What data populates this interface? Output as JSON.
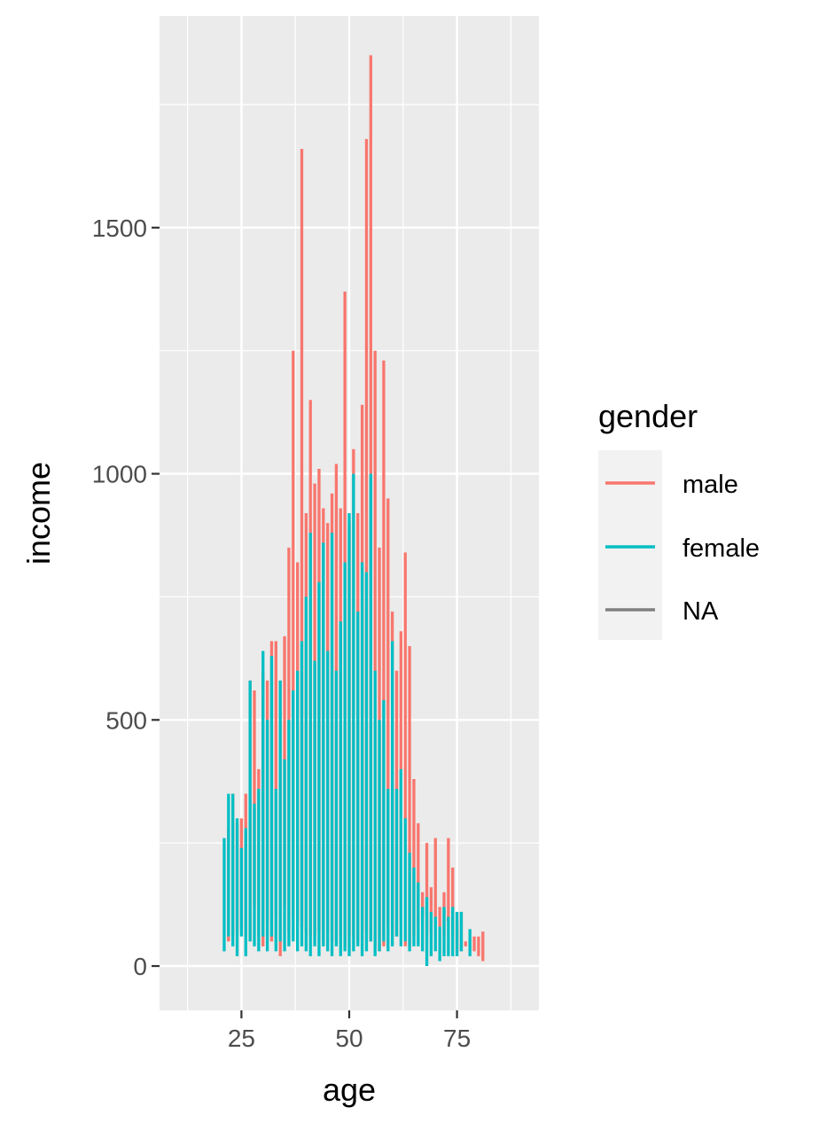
{
  "chart_data": {
    "type": "line",
    "title": "",
    "xlabel": "age",
    "ylabel": "income",
    "xlim": [
      6,
      94
    ],
    "ylim": [
      -90,
      1930
    ],
    "x_ticks": [
      25,
      50,
      75
    ],
    "x_tick_labels": [
      "25",
      "50",
      "75"
    ],
    "x_minor_ticks": [
      12.5,
      37.5,
      62.5,
      87.5
    ],
    "y_ticks": [
      0,
      500,
      1000,
      1500
    ],
    "y_tick_labels": [
      "0",
      "500",
      "1000",
      "1500"
    ],
    "y_minor_ticks": [
      250,
      750,
      1250,
      1750
    ],
    "grid": true,
    "legend": {
      "title": "gender",
      "placement": "right"
    },
    "series": [
      {
        "name": "male",
        "color": "#F8766D",
        "segments": [
          [
            22,
            50,
            280
          ],
          [
            23,
            60,
            350
          ],
          [
            24,
            70,
            290
          ],
          [
            25,
            80,
            300
          ],
          [
            26,
            60,
            350
          ],
          [
            27,
            50,
            580
          ],
          [
            28,
            120,
            560
          ],
          [
            29,
            60,
            400
          ],
          [
            30,
            40,
            600
          ],
          [
            31,
            90,
            580
          ],
          [
            32,
            50,
            660
          ],
          [
            33,
            100,
            660
          ],
          [
            34,
            20,
            580
          ],
          [
            35,
            120,
            670
          ],
          [
            36,
            70,
            850
          ],
          [
            37,
            100,
            1250
          ],
          [
            38,
            90,
            820
          ],
          [
            39,
            80,
            1660
          ],
          [
            40,
            70,
            920
          ],
          [
            41,
            60,
            1150
          ],
          [
            42,
            60,
            980
          ],
          [
            43,
            70,
            1010
          ],
          [
            44,
            50,
            930
          ],
          [
            45,
            70,
            900
          ],
          [
            46,
            50,
            960
          ],
          [
            47,
            50,
            1020
          ],
          [
            48,
            60,
            930
          ],
          [
            49,
            40,
            1370
          ],
          [
            50,
            60,
            900
          ],
          [
            51,
            60,
            1050
          ],
          [
            52,
            50,
            920
          ],
          [
            53,
            50,
            1140
          ],
          [
            54,
            70,
            1680
          ],
          [
            55,
            50,
            1850
          ],
          [
            56,
            40,
            1250
          ],
          [
            57,
            30,
            850
          ],
          [
            58,
            40,
            1230
          ],
          [
            59,
            80,
            950
          ],
          [
            60,
            60,
            720
          ],
          [
            61,
            60,
            600
          ],
          [
            62,
            90,
            680
          ],
          [
            63,
            40,
            840
          ],
          [
            64,
            40,
            650
          ],
          [
            65,
            60,
            380
          ],
          [
            66,
            80,
            290
          ],
          [
            67,
            100,
            150
          ],
          [
            68,
            60,
            250
          ],
          [
            69,
            70,
            160
          ],
          [
            70,
            100,
            260
          ],
          [
            71,
            80,
            120
          ],
          [
            72,
            60,
            150
          ],
          [
            73,
            90,
            260
          ],
          [
            74,
            60,
            200
          ],
          [
            75,
            30,
            90
          ],
          [
            76,
            30,
            110
          ],
          [
            77,
            40,
            50
          ],
          [
            78,
            30,
            60
          ],
          [
            79,
            30,
            60
          ],
          [
            80,
            20,
            60
          ],
          [
            81,
            10,
            70
          ]
        ]
      },
      {
        "name": "female",
        "color": "#00BFC4",
        "segments": [
          [
            21,
            30,
            260
          ],
          [
            22,
            60,
            350
          ],
          [
            23,
            40,
            350
          ],
          [
            24,
            20,
            300
          ],
          [
            25,
            60,
            240
          ],
          [
            26,
            20,
            280
          ],
          [
            27,
            50,
            580
          ],
          [
            28,
            40,
            330
          ],
          [
            29,
            30,
            360
          ],
          [
            30,
            60,
            640
          ],
          [
            31,
            30,
            500
          ],
          [
            32,
            60,
            630
          ],
          [
            33,
            30,
            360
          ],
          [
            34,
            50,
            580
          ],
          [
            35,
            30,
            420
          ],
          [
            36,
            40,
            500
          ],
          [
            37,
            50,
            560
          ],
          [
            38,
            30,
            600
          ],
          [
            39,
            40,
            660
          ],
          [
            40,
            30,
            750
          ],
          [
            41,
            20,
            880
          ],
          [
            42,
            40,
            620
          ],
          [
            43,
            20,
            780
          ],
          [
            44,
            40,
            860
          ],
          [
            45,
            30,
            640
          ],
          [
            46,
            20,
            880
          ],
          [
            47,
            40,
            600
          ],
          [
            48,
            20,
            700
          ],
          [
            49,
            30,
            820
          ],
          [
            50,
            20,
            920
          ],
          [
            51,
            30,
            1000
          ],
          [
            52,
            40,
            720
          ],
          [
            53,
            20,
            820
          ],
          [
            54,
            30,
            800
          ],
          [
            55,
            50,
            1000
          ],
          [
            56,
            20,
            600
          ],
          [
            57,
            30,
            500
          ],
          [
            58,
            50,
            540
          ],
          [
            59,
            30,
            360
          ],
          [
            60,
            40,
            660
          ],
          [
            61,
            60,
            360
          ],
          [
            62,
            40,
            400
          ],
          [
            63,
            50,
            300
          ],
          [
            64,
            30,
            230
          ],
          [
            65,
            40,
            200
          ],
          [
            66,
            40,
            170
          ],
          [
            67,
            30,
            120
          ],
          [
            68,
            0,
            140
          ],
          [
            69,
            20,
            110
          ],
          [
            70,
            30,
            100
          ],
          [
            71,
            10,
            80
          ],
          [
            72,
            20,
            120
          ],
          [
            73,
            20,
            100
          ],
          [
            74,
            20,
            120
          ],
          [
            75,
            20,
            110
          ],
          [
            76,
            30,
            110
          ],
          [
            78,
            20,
            75
          ]
        ]
      },
      {
        "name": "NA",
        "color": "#7F7F7F",
        "segments": []
      }
    ]
  }
}
